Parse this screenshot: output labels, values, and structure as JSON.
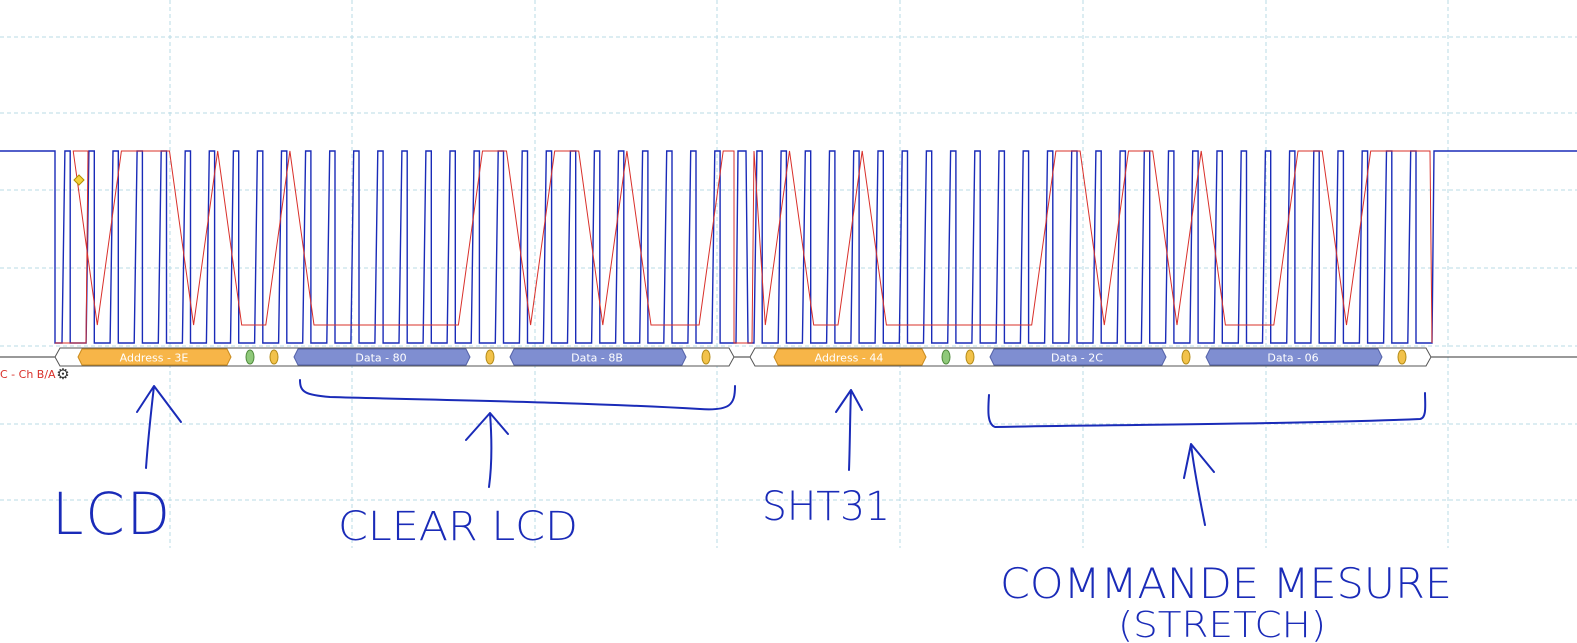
{
  "channel": {
    "label": "C - Ch B/A",
    "settings_icon": "gear-icon"
  },
  "colors": {
    "sda": "#1a2bb8",
    "scl": "#d9302a",
    "address_frame": "#f7b548",
    "data_frame": "#7f8ed1",
    "start_marker": "#8fc97a",
    "ack_marker": "#f2c24a",
    "grid": "#b9dbe6",
    "annotation_ink": "#1a2bb8"
  },
  "decoder": {
    "frames": [
      {
        "type": "address",
        "label": "Address - 3E"
      },
      {
        "type": "data",
        "label": "Data - 80"
      },
      {
        "type": "data",
        "label": "Data - 8B"
      },
      {
        "type": "address",
        "label": "Address - 44"
      },
      {
        "type": "data",
        "label": "Data - 2C"
      },
      {
        "type": "data",
        "label": "Data - 06"
      }
    ]
  },
  "annotations": {
    "lcd": "LCD",
    "clear_lcd": "CLEAR LCD",
    "sht31": "SHT31",
    "commande_mesure": "COMMANDE MESURE",
    "stretch": "(STRETCH)"
  }
}
